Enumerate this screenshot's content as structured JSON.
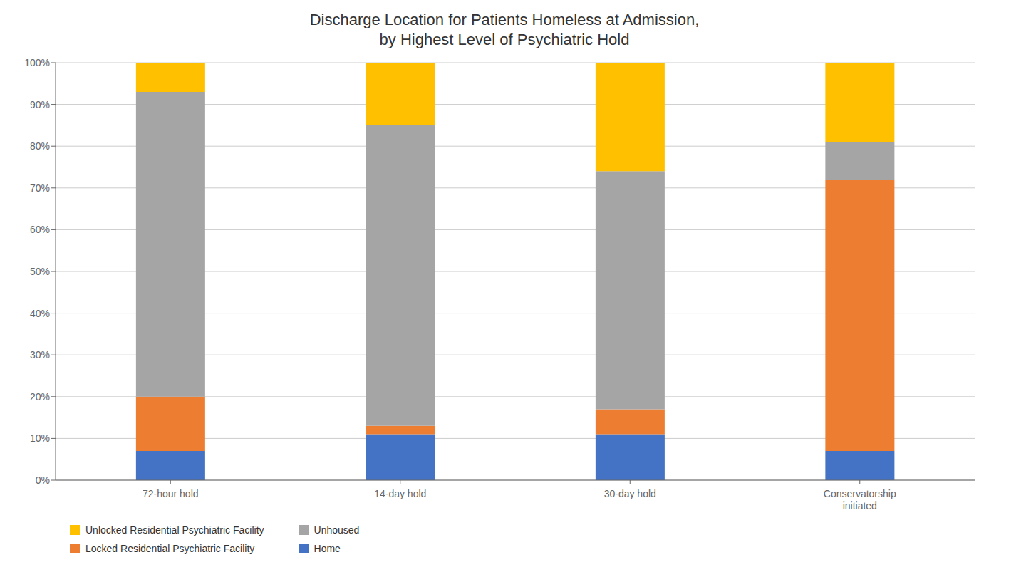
{
  "chart_data": {
    "type": "bar",
    "stacked": true,
    "title": "Discharge Location for Patients Homeless at Admission,\nby Highest Level of Psychiatric Hold",
    "categories": [
      "72-hour hold",
      "14-day hold",
      "30-day hold",
      "Conservatorship\ninitiated"
    ],
    "series": [
      {
        "name": "Home",
        "color": "#4472C4",
        "values": [
          7,
          11,
          11,
          7
        ]
      },
      {
        "name": "Locked Residential Psychiatric Facility",
        "color": "#ED7D31",
        "values": [
          13,
          2,
          6,
          65
        ]
      },
      {
        "name": "Unhoused",
        "color": "#A5A5A5",
        "values": [
          73,
          72,
          57,
          9
        ]
      },
      {
        "name": "Unlocked Residential Psychiatric Facility",
        "color": "#FFC000",
        "values": [
          7,
          15,
          26,
          19
        ]
      }
    ],
    "ylim": [
      0,
      100
    ],
    "yticks": [
      {
        "value": 0,
        "label": "0%"
      },
      {
        "value": 10,
        "label": "10%"
      },
      {
        "value": 20,
        "label": "20%"
      },
      {
        "value": 30,
        "label": "30%"
      },
      {
        "value": 40,
        "label": "40%"
      },
      {
        "value": 50,
        "label": "50%"
      },
      {
        "value": 60,
        "label": "60%"
      },
      {
        "value": 70,
        "label": "70%"
      },
      {
        "value": 80,
        "label": "80%"
      },
      {
        "value": 90,
        "label": "90%"
      },
      {
        "value": 100,
        "label": "100%"
      }
    ],
    "grid": true,
    "legend": "bottom"
  }
}
